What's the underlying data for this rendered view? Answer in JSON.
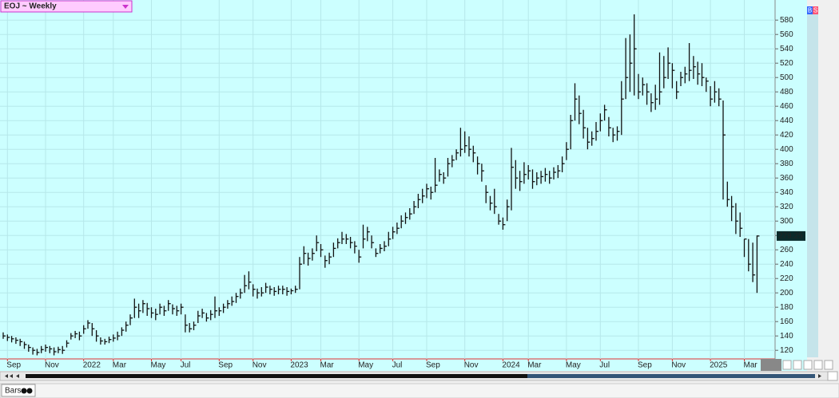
{
  "chart_data": {
    "type": "ohlc",
    "title": "EOJ ~ Weekly",
    "color": "#111111",
    "grid": true,
    "ylim": [
      108,
      608
    ],
    "yticks": [
      120,
      140,
      160,
      180,
      200,
      220,
      240,
      260,
      280,
      300,
      320,
      340,
      360,
      380,
      400,
      420,
      440,
      460,
      480,
      500,
      520,
      540,
      560,
      580
    ],
    "categories": [
      null,
      "Sep",
      null,
      null,
      null,
      null,
      null,
      null,
      null,
      null,
      "Nov",
      null,
      null,
      null,
      null,
      null,
      null,
      null,
      null,
      "2022",
      null,
      null,
      null,
      null,
      null,
      null,
      "Mar",
      null,
      null,
      null,
      null,
      null,
      null,
      null,
      null,
      "May",
      null,
      null,
      null,
      null,
      null,
      null,
      "Jul",
      null,
      null,
      null,
      null,
      null,
      null,
      null,
      null,
      "Sep",
      null,
      null,
      null,
      null,
      null,
      null,
      null,
      "Nov",
      null,
      null,
      null,
      null,
      null,
      null,
      null,
      null,
      "2023",
      null,
      null,
      null,
      null,
      null,
      null,
      "Mar",
      null,
      null,
      null,
      null,
      null,
      null,
      null,
      null,
      "May",
      null,
      null,
      null,
      null,
      null,
      null,
      null,
      "Jul",
      null,
      null,
      null,
      null,
      null,
      null,
      null,
      "Sep",
      null,
      null,
      null,
      null,
      null,
      null,
      null,
      null,
      "Nov",
      null,
      null,
      null,
      null,
      null,
      null,
      null,
      null,
      "2024",
      null,
      null,
      null,
      null,
      null,
      "Mar",
      null,
      null,
      null,
      null,
      null,
      null,
      null,
      null,
      "May",
      null,
      null,
      null,
      null,
      null,
      null,
      null,
      "Jul",
      null,
      null,
      null,
      null,
      null,
      null,
      null,
      null,
      "Sep",
      null,
      null,
      null,
      null,
      null,
      null,
      null,
      "Nov",
      null,
      null,
      null,
      null,
      null,
      null,
      null,
      null,
      "2025",
      null,
      null,
      null,
      null,
      null,
      null,
      null,
      "Mar",
      null,
      null,
      null
    ],
    "high": [
      145,
      142,
      140,
      138,
      136,
      132,
      128,
      124,
      122,
      126,
      128,
      126,
      124,
      125,
      126,
      134,
      144,
      147,
      146,
      155,
      162,
      158,
      148,
      138,
      136,
      139,
      142,
      146,
      152,
      160,
      170,
      192,
      185,
      190,
      186,
      180,
      178,
      185,
      182,
      190,
      184,
      182,
      185,
      170,
      158,
      160,
      175,
      178,
      172,
      176,
      195,
      180,
      185,
      190,
      195,
      200,
      206,
      225,
      230,
      212,
      206,
      208,
      214,
      210,
      208,
      210,
      210,
      208,
      206,
      210,
      250,
      265,
      256,
      262,
      280,
      268,
      252,
      256,
      270,
      276,
      285,
      282,
      278,
      272,
      260,
      295,
      292,
      280,
      262,
      268,
      272,
      285,
      292,
      298,
      308,
      312,
      318,
      328,
      338,
      345,
      352,
      348,
      388,
      372,
      368,
      388,
      392,
      400,
      430,
      425,
      418,
      405,
      390,
      380,
      350,
      335,
      345,
      310,
      305,
      330,
      402,
      385,
      370,
      382,
      378,
      372,
      368,
      370,
      374,
      370,
      375,
      378,
      390,
      410,
      448,
      492,
      475,
      455,
      430,
      425,
      438,
      450,
      462,
      445,
      430,
      432,
      495,
      555,
      560,
      588,
      505,
      500,
      492,
      478,
      490,
      535,
      530,
      542,
      520,
      495,
      508,
      515,
      548,
      530,
      522,
      520,
      500,
      488,
      495,
      485,
      468,
      355,
      335,
      325,
      312,
      275,
      275,
      270,
      280
    ],
    "low": [
      136,
      133,
      131,
      129,
      126,
      122,
      118,
      114,
      113,
      116,
      118,
      116,
      113,
      116,
      115,
      124,
      135,
      137,
      134,
      143,
      150,
      140,
      132,
      128,
      128,
      130,
      132,
      134,
      140,
      146,
      155,
      165,
      165,
      172,
      168,
      165,
      162,
      170,
      168,
      175,
      170,
      168,
      170,
      145,
      145,
      148,
      158,
      165,
      160,
      162,
      165,
      168,
      172,
      178,
      182,
      186,
      192,
      200,
      205,
      195,
      192,
      195,
      200,
      198,
      196,
      198,
      198,
      196,
      198,
      200,
      205,
      240,
      238,
      245,
      258,
      250,
      235,
      240,
      250,
      262,
      268,
      268,
      262,
      255,
      242,
      262,
      272,
      262,
      250,
      255,
      258,
      265,
      275,
      282,
      290,
      296,
      302,
      310,
      318,
      325,
      332,
      330,
      340,
      355,
      352,
      362,
      375,
      385,
      390,
      395,
      390,
      382,
      365,
      355,
      325,
      315,
      310,
      295,
      288,
      300,
      315,
      345,
      342,
      352,
      358,
      345,
      350,
      352,
      355,
      352,
      358,
      360,
      368,
      385,
      400,
      440,
      435,
      415,
      400,
      405,
      412,
      425,
      440,
      418,
      410,
      412,
      420,
      470,
      480,
      475,
      470,
      475,
      462,
      452,
      455,
      462,
      485,
      498,
      485,
      470,
      488,
      492,
      495,
      498,
      490,
      488,
      480,
      460,
      465,
      460,
      330,
      320,
      300,
      282,
      278,
      250,
      230,
      215,
      200
    ],
    "close": [
      140,
      138,
      136,
      134,
      132,
      128,
      124,
      120,
      117,
      121,
      124,
      122,
      118,
      121,
      120,
      130,
      140,
      143,
      140,
      150,
      158,
      150,
      140,
      133,
      132,
      135,
      137,
      140,
      148,
      155,
      165,
      180,
      175,
      185,
      178,
      172,
      170,
      180,
      175,
      185,
      178,
      175,
      180,
      155,
      150,
      155,
      168,
      172,
      165,
      170,
      175,
      175,
      180,
      185,
      188,
      195,
      200,
      210,
      215,
      205,
      200,
      200,
      208,
      205,
      202,
      205,
      205,
      202,
      203,
      205,
      240,
      255,
      248,
      255,
      270,
      260,
      245,
      250,
      262,
      270,
      275,
      275,
      270,
      265,
      250,
      275,
      285,
      270,
      255,
      262,
      265,
      275,
      285,
      290,
      300,
      305,
      310,
      320,
      330,
      335,
      345,
      340,
      350,
      365,
      360,
      380,
      385,
      395,
      400,
      405,
      400,
      395,
      380,
      370,
      340,
      325,
      320,
      300,
      295,
      320,
      375,
      360,
      355,
      365,
      370,
      355,
      360,
      362,
      365,
      360,
      368,
      370,
      380,
      400,
      440,
      470,
      450,
      430,
      410,
      415,
      425,
      440,
      455,
      430,
      420,
      425,
      470,
      500,
      520,
      540,
      480,
      490,
      480,
      465,
      470,
      480,
      500,
      520,
      510,
      480,
      500,
      505,
      510,
      515,
      505,
      500,
      495,
      470,
      480,
      470,
      420,
      330,
      320,
      300,
      290,
      275,
      240,
      225,
      279.25
    ]
  },
  "ui": {
    "toolbar_buttons": [
      "B",
      "S"
    ],
    "bottom_tab": "Bars"
  }
}
